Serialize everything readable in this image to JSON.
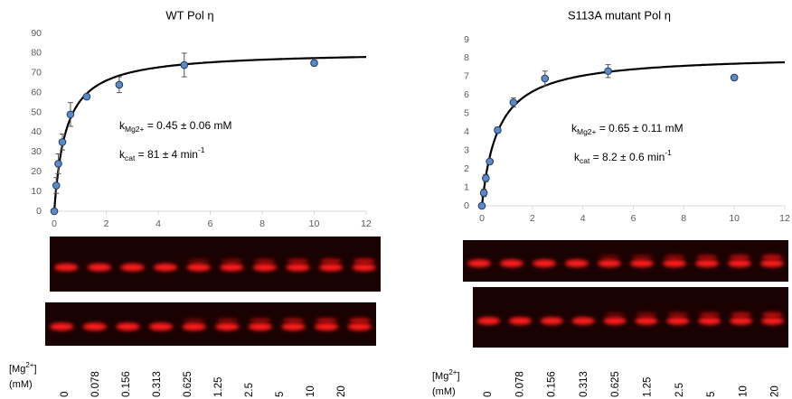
{
  "chart_data": [
    {
      "type": "scatter",
      "title": "WT Pol η",
      "x": [
        0,
        0.078,
        0.156,
        0.313,
        0.625,
        1.25,
        2.5,
        5,
        10
      ],
      "values": [
        0,
        13,
        24,
        35,
        49,
        58,
        64,
        74,
        75
      ],
      "errors": [
        0,
        4,
        5,
        4,
        6,
        1,
        4,
        6,
        0
      ],
      "color": "#5b8ac6",
      "fit": {
        "kcat": 81,
        "km": 0.45
      },
      "xlim": [
        0,
        12
      ],
      "xticks": [
        0,
        2,
        4,
        6,
        8,
        10,
        12
      ],
      "ylim": [
        0,
        90
      ],
      "yticks": [
        0,
        10,
        20,
        30,
        40,
        50,
        60,
        70,
        80,
        90
      ],
      "annotations": [
        {
          "main": "k",
          "sub": "Mg2+",
          "rest": " = 0.45 ± 0.06 mM"
        },
        {
          "main": "k",
          "sub": "cat",
          "rest": " = 81 ± 4 min",
          "sup": "-1"
        }
      ],
      "lane_label": {
        "open": "[Mg",
        "sup": "2+",
        "close": "]",
        "unit": "(mM)"
      },
      "lanes": [
        "0",
        "0.078",
        "0.156",
        "0.313",
        "0.625",
        "1.25",
        "2.5",
        "5",
        "10",
        "20"
      ]
    },
    {
      "type": "scatter",
      "title": "S113A mutant Pol η",
      "x": [
        0,
        0.078,
        0.156,
        0.313,
        0.625,
        1.25,
        2.5,
        5,
        10
      ],
      "values": [
        0,
        0.7,
        1.5,
        2.4,
        4.1,
        5.6,
        6.9,
        7.3,
        6.95
      ],
      "errors": [
        0,
        0.2,
        0.2,
        0.1,
        0.15,
        0.25,
        0.4,
        0.35,
        0
      ],
      "color": "#5b8ac6",
      "fit": {
        "kcat": 8.2,
        "km": 0.65
      },
      "xlim": [
        0,
        12
      ],
      "xticks": [
        0,
        2,
        4,
        6,
        8,
        10,
        12
      ],
      "ylim": [
        0,
        9
      ],
      "yticks": [
        0,
        1,
        2,
        3,
        4,
        5,
        6,
        7,
        8,
        9
      ],
      "annotations": [
        {
          "main": "k",
          "sub": "Mg2+",
          "rest": " = 0.65 ± 0.11 mM"
        },
        {
          "main": "k",
          "sub": "cat",
          "rest": " = 8.2 ± 0.6 min",
          "sup": "-1"
        }
      ],
      "lane_label": {
        "open": "[Mg",
        "sup": "2+",
        "close": "]",
        "unit": "(mM)"
      },
      "lanes": [
        "0",
        "0.078",
        "0.156",
        "0.313",
        "0.625",
        "1.25",
        "2.5",
        "5",
        "10",
        "20"
      ]
    }
  ]
}
